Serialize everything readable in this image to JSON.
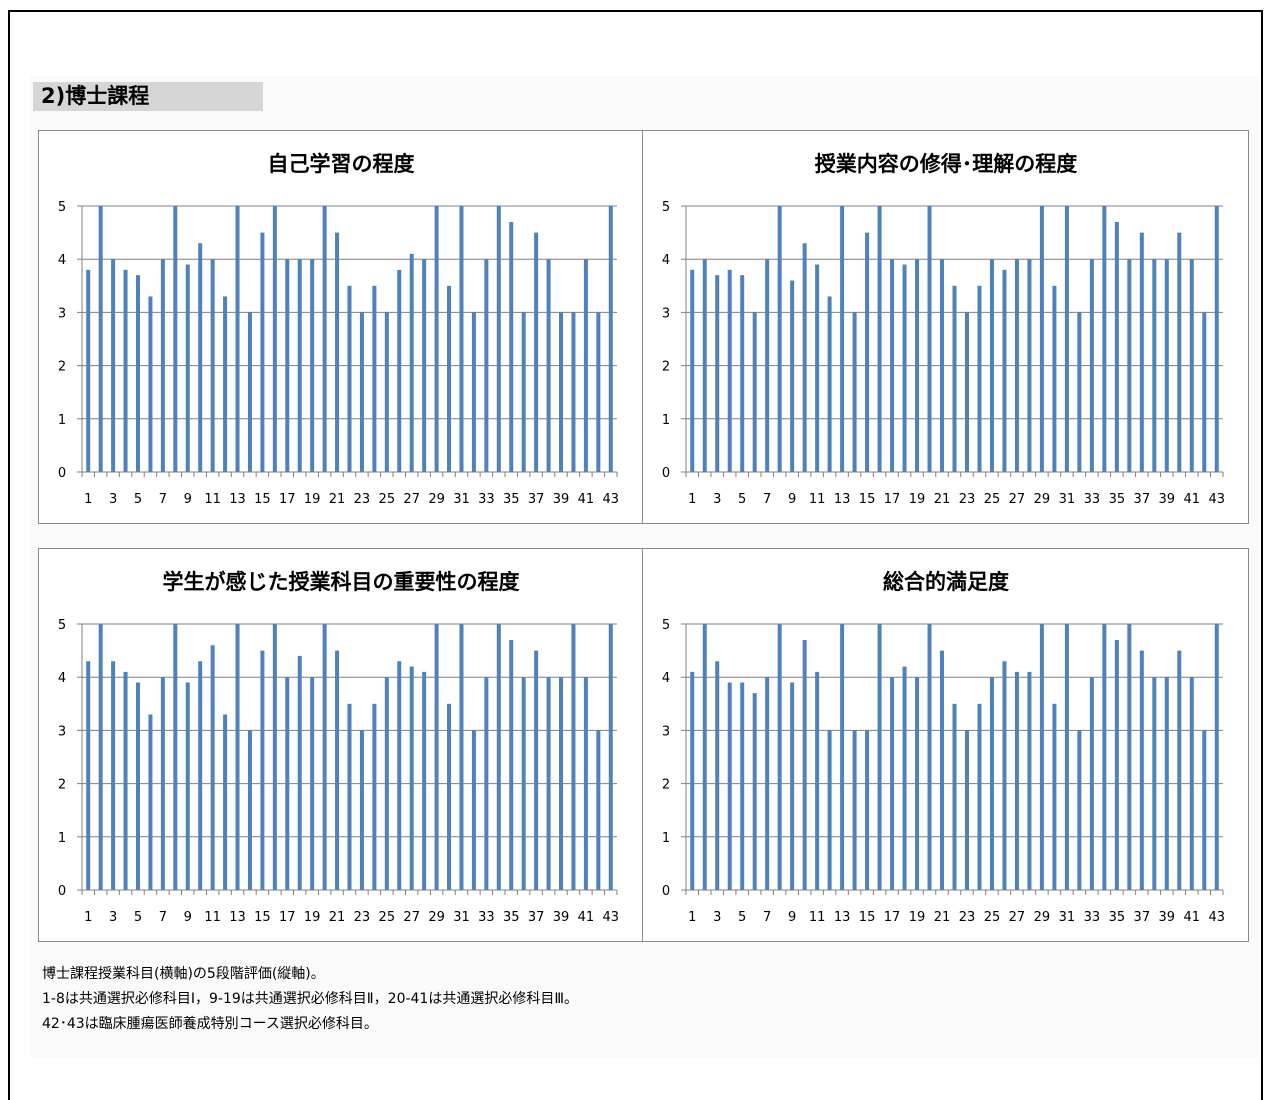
{
  "section": {
    "heading": "2)博士課程"
  },
  "colors": {
    "bar": "#4f81bd",
    "axis": "#808080"
  },
  "chart_data": [
    {
      "type": "bar",
      "title": "自己学習の程度",
      "categories": [
        1,
        2,
        3,
        4,
        5,
        6,
        7,
        8,
        9,
        10,
        11,
        12,
        13,
        14,
        15,
        16,
        17,
        18,
        19,
        20,
        21,
        22,
        23,
        24,
        25,
        26,
        27,
        28,
        29,
        30,
        31,
        32,
        33,
        34,
        35,
        36,
        37,
        38,
        39,
        40,
        41,
        42,
        43
      ],
      "x_tick_labels": [
        "1",
        "3",
        "5",
        "7",
        "9",
        "11",
        "13",
        "15",
        "17",
        "19",
        "21",
        "23",
        "25",
        "27",
        "29",
        "31",
        "33",
        "35",
        "37",
        "39",
        "41",
        "43"
      ],
      "values": [
        3.8,
        5,
        4,
        3.8,
        3.7,
        3.3,
        4,
        5,
        3.9,
        4.3,
        4,
        3.3,
        5,
        3,
        4.5,
        5,
        4,
        4,
        4,
        5,
        4.5,
        3.5,
        3,
        3.5,
        3,
        3.8,
        4.1,
        4,
        5,
        3.5,
        5,
        3,
        4,
        5,
        4.7,
        3,
        4.5,
        4,
        3,
        3,
        4,
        3,
        5
      ],
      "ylim": [
        0,
        5
      ],
      "y_ticks": [
        "0",
        "1",
        "2",
        "3",
        "4",
        "5"
      ],
      "grid": true
    },
    {
      "type": "bar",
      "title": "授業内容の修得･理解の程度",
      "categories": [
        1,
        2,
        3,
        4,
        5,
        6,
        7,
        8,
        9,
        10,
        11,
        12,
        13,
        14,
        15,
        16,
        17,
        18,
        19,
        20,
        21,
        22,
        23,
        24,
        25,
        26,
        27,
        28,
        29,
        30,
        31,
        32,
        33,
        34,
        35,
        36,
        37,
        38,
        39,
        40,
        41,
        42,
        43
      ],
      "x_tick_labels": [
        "1",
        "3",
        "5",
        "7",
        "9",
        "11",
        "13",
        "15",
        "17",
        "19",
        "21",
        "23",
        "25",
        "27",
        "29",
        "31",
        "33",
        "35",
        "37",
        "39",
        "41",
        "43"
      ],
      "values": [
        3.8,
        4,
        3.7,
        3.8,
        3.7,
        3,
        4,
        5,
        3.6,
        4.3,
        3.9,
        3.3,
        5,
        3,
        4.5,
        5,
        4,
        3.9,
        4,
        5,
        4,
        3.5,
        3,
        3.5,
        4,
        3.8,
        4,
        4,
        5,
        3.5,
        5,
        3,
        4,
        5,
        4.7,
        4,
        4.5,
        4,
        4,
        4.5,
        4,
        3,
        5
      ],
      "ylim": [
        0,
        5
      ],
      "y_ticks": [
        "0",
        "1",
        "2",
        "3",
        "4",
        "5"
      ],
      "grid": true
    },
    {
      "type": "bar",
      "title": "学生が感じた授業科目の重要性の程度",
      "categories": [
        1,
        2,
        3,
        4,
        5,
        6,
        7,
        8,
        9,
        10,
        11,
        12,
        13,
        14,
        15,
        16,
        17,
        18,
        19,
        20,
        21,
        22,
        23,
        24,
        25,
        26,
        27,
        28,
        29,
        30,
        31,
        32,
        33,
        34,
        35,
        36,
        37,
        38,
        39,
        40,
        41,
        42,
        43
      ],
      "x_tick_labels": [
        "1",
        "3",
        "5",
        "7",
        "9",
        "11",
        "13",
        "15",
        "17",
        "19",
        "21",
        "23",
        "25",
        "27",
        "29",
        "31",
        "33",
        "35",
        "37",
        "39",
        "41",
        "43"
      ],
      "values": [
        4.3,
        5,
        4.3,
        4.1,
        3.9,
        3.3,
        4,
        5,
        3.9,
        4.3,
        4.6,
        3.3,
        5,
        3,
        4.5,
        5,
        4,
        4.4,
        4,
        5,
        4.5,
        3.5,
        3,
        3.5,
        4,
        4.3,
        4.2,
        4.1,
        5,
        3.5,
        5,
        3,
        4,
        5,
        4.7,
        4,
        4.5,
        4,
        4,
        5,
        4,
        3,
        5
      ],
      "ylim": [
        0,
        5
      ],
      "y_ticks": [
        "0",
        "1",
        "2",
        "3",
        "4",
        "5"
      ],
      "grid": true
    },
    {
      "type": "bar",
      "title": "総合的満足度",
      "categories": [
        1,
        2,
        3,
        4,
        5,
        6,
        7,
        8,
        9,
        10,
        11,
        12,
        13,
        14,
        15,
        16,
        17,
        18,
        19,
        20,
        21,
        22,
        23,
        24,
        25,
        26,
        27,
        28,
        29,
        30,
        31,
        32,
        33,
        34,
        35,
        36,
        37,
        38,
        39,
        40,
        41,
        42,
        43
      ],
      "x_tick_labels": [
        "1",
        "3",
        "5",
        "7",
        "9",
        "11",
        "13",
        "15",
        "17",
        "19",
        "21",
        "23",
        "25",
        "27",
        "29",
        "31",
        "33",
        "35",
        "37",
        "39",
        "41",
        "43"
      ],
      "values": [
        4.1,
        5,
        4.3,
        3.9,
        3.9,
        3.7,
        4,
        5,
        3.9,
        4.7,
        4.1,
        3,
        5,
        3,
        3,
        5,
        4,
        4.2,
        4,
        5,
        4.5,
        3.5,
        3,
        3.5,
        4,
        4.3,
        4.1,
        4.1,
        5,
        3.5,
        5,
        3,
        4,
        5,
        4.7,
        5,
        4.5,
        4,
        4,
        4.5,
        4,
        3,
        5
      ],
      "ylim": [
        0,
        5
      ],
      "y_ticks": [
        "0",
        "1",
        "2",
        "3",
        "4",
        "5"
      ],
      "grid": true
    }
  ],
  "notes": [
    "博士課程授業科目(横軸)の5段階評価(縦軸)。",
    "1-8は共通選択必修科目Ⅰ，9-19は共通選択必修科目Ⅱ，20-41は共通選択必修科目Ⅲ。",
    "42･43は臨床腫瘍医師養成特別コース選択必修科目。"
  ]
}
